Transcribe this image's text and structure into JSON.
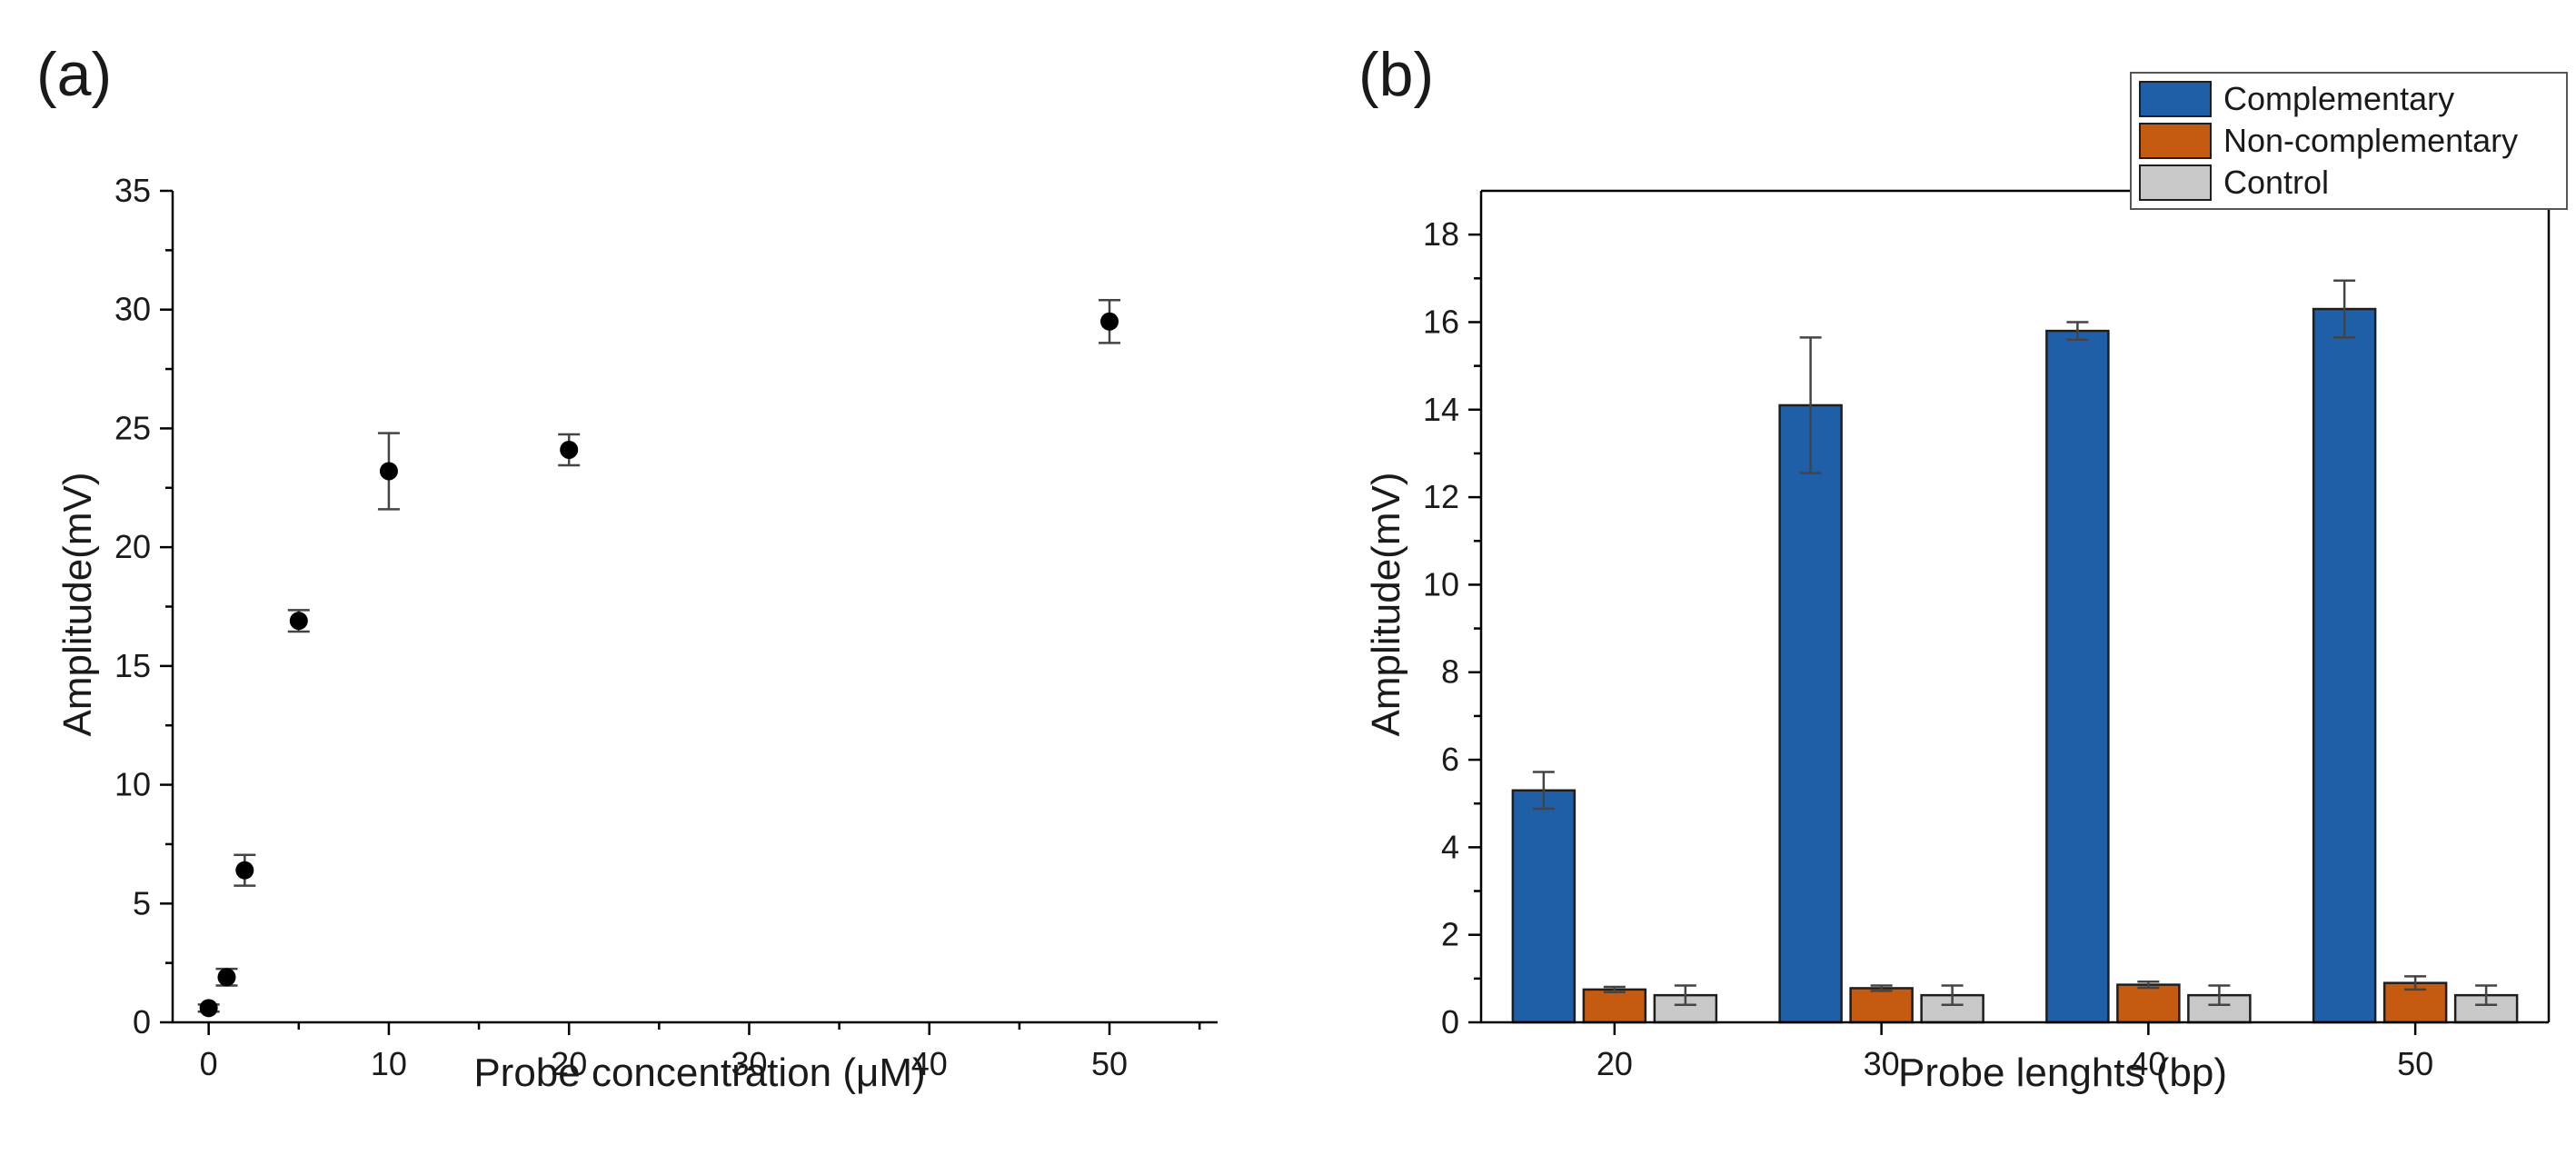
{
  "chart_data": [
    {
      "type": "scatter",
      "panel_label": "(a)",
      "xlabel": "Probe concentration (μM)",
      "ylabel": "Amplitude(mV)",
      "xlim": [
        -2,
        56
      ],
      "ylim": [
        0,
        35
      ],
      "xticks": [
        0,
        10,
        20,
        30,
        40,
        50
      ],
      "yticks": [
        0,
        5,
        10,
        15,
        20,
        25,
        30,
        35
      ],
      "series": [
        {
          "name": "Amplitude",
          "color": "#000000",
          "points": [
            {
              "x": 0,
              "y": 0.6,
              "err": 0.15
            },
            {
              "x": 1,
              "y": 1.9,
              "err": 0.35
            },
            {
              "x": 2,
              "y": 6.4,
              "err": 0.65
            },
            {
              "x": 5,
              "y": 16.9,
              "err": 0.45
            },
            {
              "x": 10,
              "y": 23.2,
              "err": 1.6
            },
            {
              "x": 20,
              "y": 24.1,
              "err": 0.65
            },
            {
              "x": 50,
              "y": 29.5,
              "err": 0.9
            }
          ]
        }
      ]
    },
    {
      "type": "bar",
      "panel_label": "(b)",
      "xlabel": "Probe lenghts (bp)",
      "ylabel": "Amplitude(mV)",
      "ylim": [
        0,
        19
      ],
      "yticks": [
        0,
        2,
        4,
        6,
        8,
        10,
        12,
        14,
        16,
        18
      ],
      "categories": [
        "20",
        "30",
        "40",
        "50"
      ],
      "legend_position": "top-right",
      "series": [
        {
          "name": "Complementary",
          "color": "#1f5fa8",
          "values": [
            5.3,
            14.1,
            15.8,
            16.3
          ],
          "errors": [
            0.42,
            1.55,
            0.2,
            0.65
          ]
        },
        {
          "name": "Non-complementary",
          "color": "#c55a11",
          "values": [
            0.75,
            0.78,
            0.86,
            0.9
          ],
          "errors": [
            0.06,
            0.06,
            0.07,
            0.15
          ]
        },
        {
          "name": "Control",
          "color": "#c8c8c8",
          "values": [
            0.62,
            0.62,
            0.62,
            0.62
          ],
          "errors": [
            0.22,
            0.22,
            0.22,
            0.22
          ]
        }
      ]
    }
  ]
}
